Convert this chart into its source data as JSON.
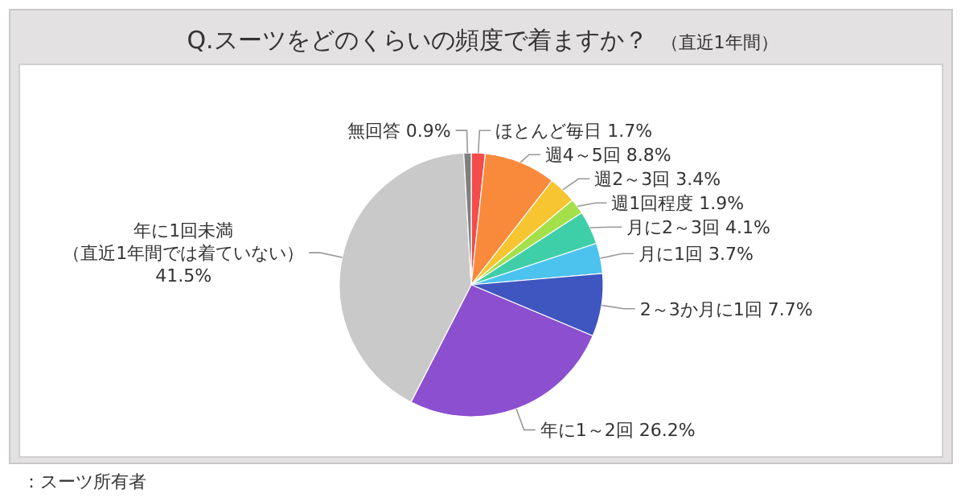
{
  "chart_data": {
    "type": "pie",
    "title": "Q.スーツをどのくらいの頻度で着ますか？",
    "subtitle": "（直近1年間）",
    "categories": [
      "ほとんど毎日",
      "週4～5回",
      "週2～3回",
      "週1回程度",
      "月に2～3回",
      "月に1回",
      "2～3か月に1回",
      "年に1～2回",
      "年に1回未満（直近1年間では着ていない）",
      "無回答"
    ],
    "values": [
      1.7,
      8.8,
      3.4,
      1.9,
      4.1,
      3.7,
      7.7,
      26.2,
      41.5,
      0.9
    ],
    "value_labels": [
      "1.7%",
      "8.8%",
      "3.4%",
      "1.9%",
      "4.1%",
      "3.7%",
      "7.7%",
      "26.2%",
      "41.5%",
      "0.9%"
    ],
    "colors": [
      "#f44b4b",
      "#f98a3c",
      "#f6c531",
      "#a4e04a",
      "#3fcfa8",
      "#4cc3ef",
      "#3f56c0",
      "#8b4fcf",
      "#c9c9c9",
      "#7f7f7f"
    ],
    "annotations": [
      "：スーツ所有者"
    ]
  }
}
